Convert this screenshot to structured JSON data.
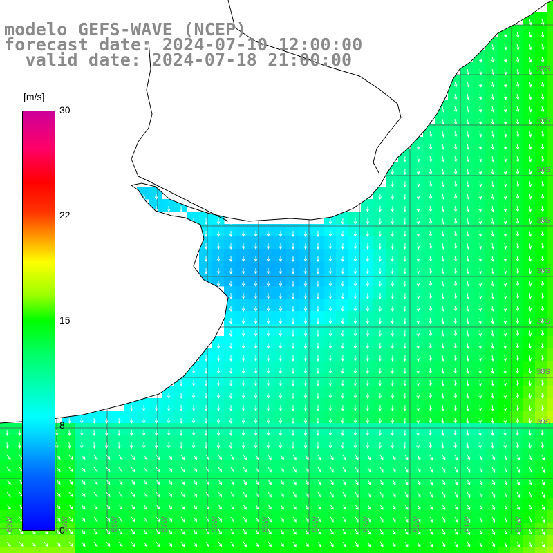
{
  "title": {
    "line1": "modelo GEFS-WAVE (NCEP)",
    "line2": "forecast date: 2024-07-10 12:00:00",
    "line3": "  valid date: 2024-07-18 21:00:00"
  },
  "colorbar": {
    "units": "[m/s]",
    "labels": [
      "30",
      "22",
      "15",
      "8",
      "0"
    ],
    "values": [
      30,
      22,
      15,
      8,
      0
    ],
    "colors": [
      "#cc0099",
      "#ff0000",
      "#ffff00",
      "#00ffff",
      "#0000ff"
    ]
  },
  "map": {
    "field": "wind speed with direction arrows",
    "land_color": "#ffffff",
    "coast_color": "#000000",
    "grid_color": "#555555",
    "lon_tick_labels": [
      "60W",
      "59W",
      "58W",
      "57W",
      "56W",
      "55W",
      "54W",
      "53W",
      "52W",
      "51W",
      "50W"
    ],
    "lat_tick_labels": [
      "32S",
      "33S",
      "34S",
      "35S",
      "36S",
      "37S",
      "38S",
      "39S"
    ]
  }
}
